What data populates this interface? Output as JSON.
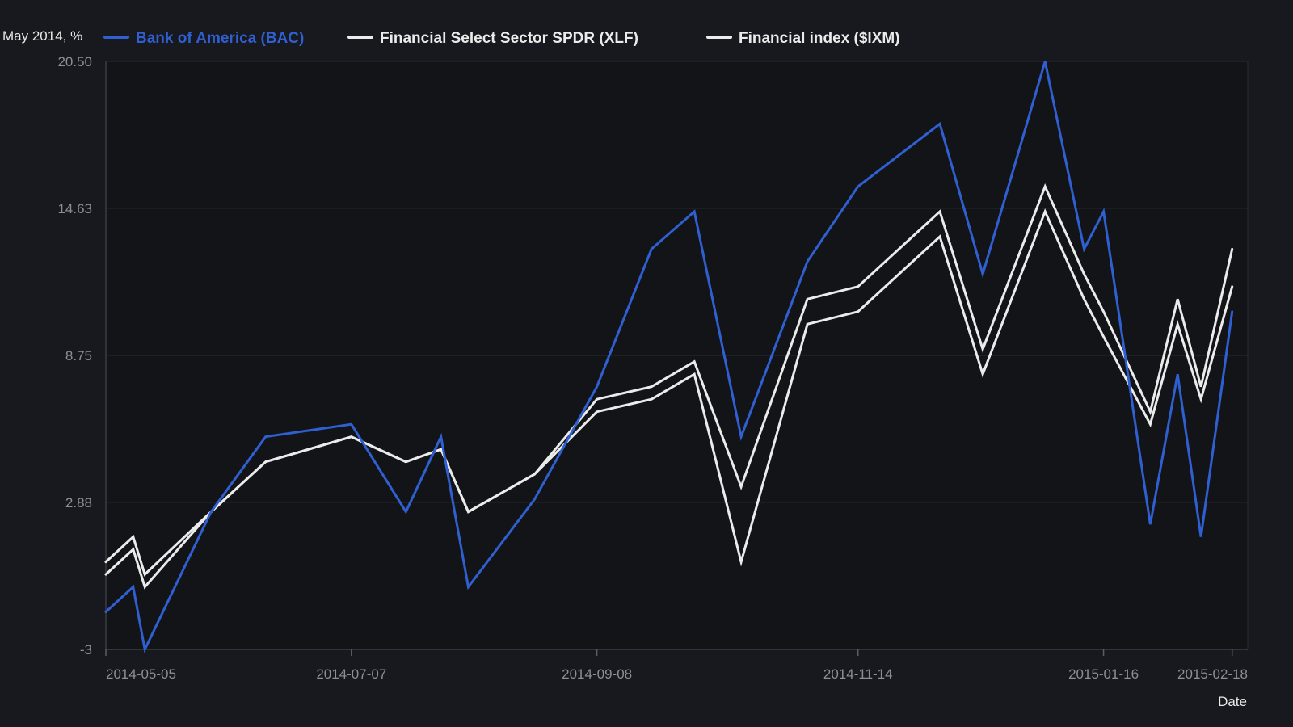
{
  "chart_data": {
    "type": "line",
    "ylabel": "May 2014, %",
    "xlabel": "Date",
    "ylim": [
      -3,
      20.5
    ],
    "yticks": [
      "20.50",
      "14.63",
      "8.75",
      "2.88",
      "-3"
    ],
    "x_range": [
      "2014-05-05",
      "2015-02-22"
    ],
    "xticks": [
      "2014-05-05",
      "2014-07-07",
      "2014-09-08",
      "2014-11-14",
      "2015-01-16",
      "2015-02-18"
    ],
    "grid": true,
    "legend_position": "top",
    "x": [
      "2014-05-05",
      "2014-05-12",
      "2014-05-15",
      "2014-06-01",
      "2014-06-15",
      "2014-07-07",
      "2014-07-21",
      "2014-07-30",
      "2014-08-06",
      "2014-08-23",
      "2014-09-08",
      "2014-09-22",
      "2014-10-03",
      "2014-10-15",
      "2014-11-01",
      "2014-11-14",
      "2014-12-05",
      "2014-12-16",
      "2015-01-01",
      "2015-01-11",
      "2015-01-16",
      "2015-01-28",
      "2015-02-04",
      "2015-02-10",
      "2015-02-18"
    ],
    "series": [
      {
        "name": "Bank of America (BAC)",
        "color": "#2f5fd0",
        "values": [
          -1.5,
          -0.5,
          -3.0,
          2.5,
          5.5,
          6.0,
          2.5,
          5.5,
          -0.5,
          3.0,
          7.5,
          13.0,
          14.5,
          5.5,
          12.5,
          15.5,
          18.0,
          12.0,
          20.5,
          13.0,
          14.5,
          2.0,
          8.0,
          1.5,
          10.5
        ]
      },
      {
        "name": "Financial Select Sector SPDR (XLF)",
        "color": "#ebebeb",
        "values": [
          0.0,
          1.0,
          -0.5,
          2.5,
          4.5,
          5.5,
          4.5,
          5.0,
          2.5,
          4.0,
          7.0,
          7.5,
          8.5,
          3.5,
          11.0,
          11.5,
          14.5,
          9.0,
          15.5,
          12.0,
          10.5,
          6.5,
          11.0,
          7.5,
          13.0
        ]
      },
      {
        "name": "Financial index ($IXM)",
        "color": "#ebebeb",
        "values": [
          0.5,
          1.5,
          0.0,
          2.5,
          4.5,
          5.5,
          4.5,
          5.0,
          2.5,
          4.0,
          6.5,
          7.0,
          8.0,
          0.5,
          10.0,
          10.5,
          13.5,
          8.0,
          14.5,
          11.0,
          9.5,
          6.0,
          10.0,
          7.0,
          11.5
        ]
      }
    ]
  }
}
